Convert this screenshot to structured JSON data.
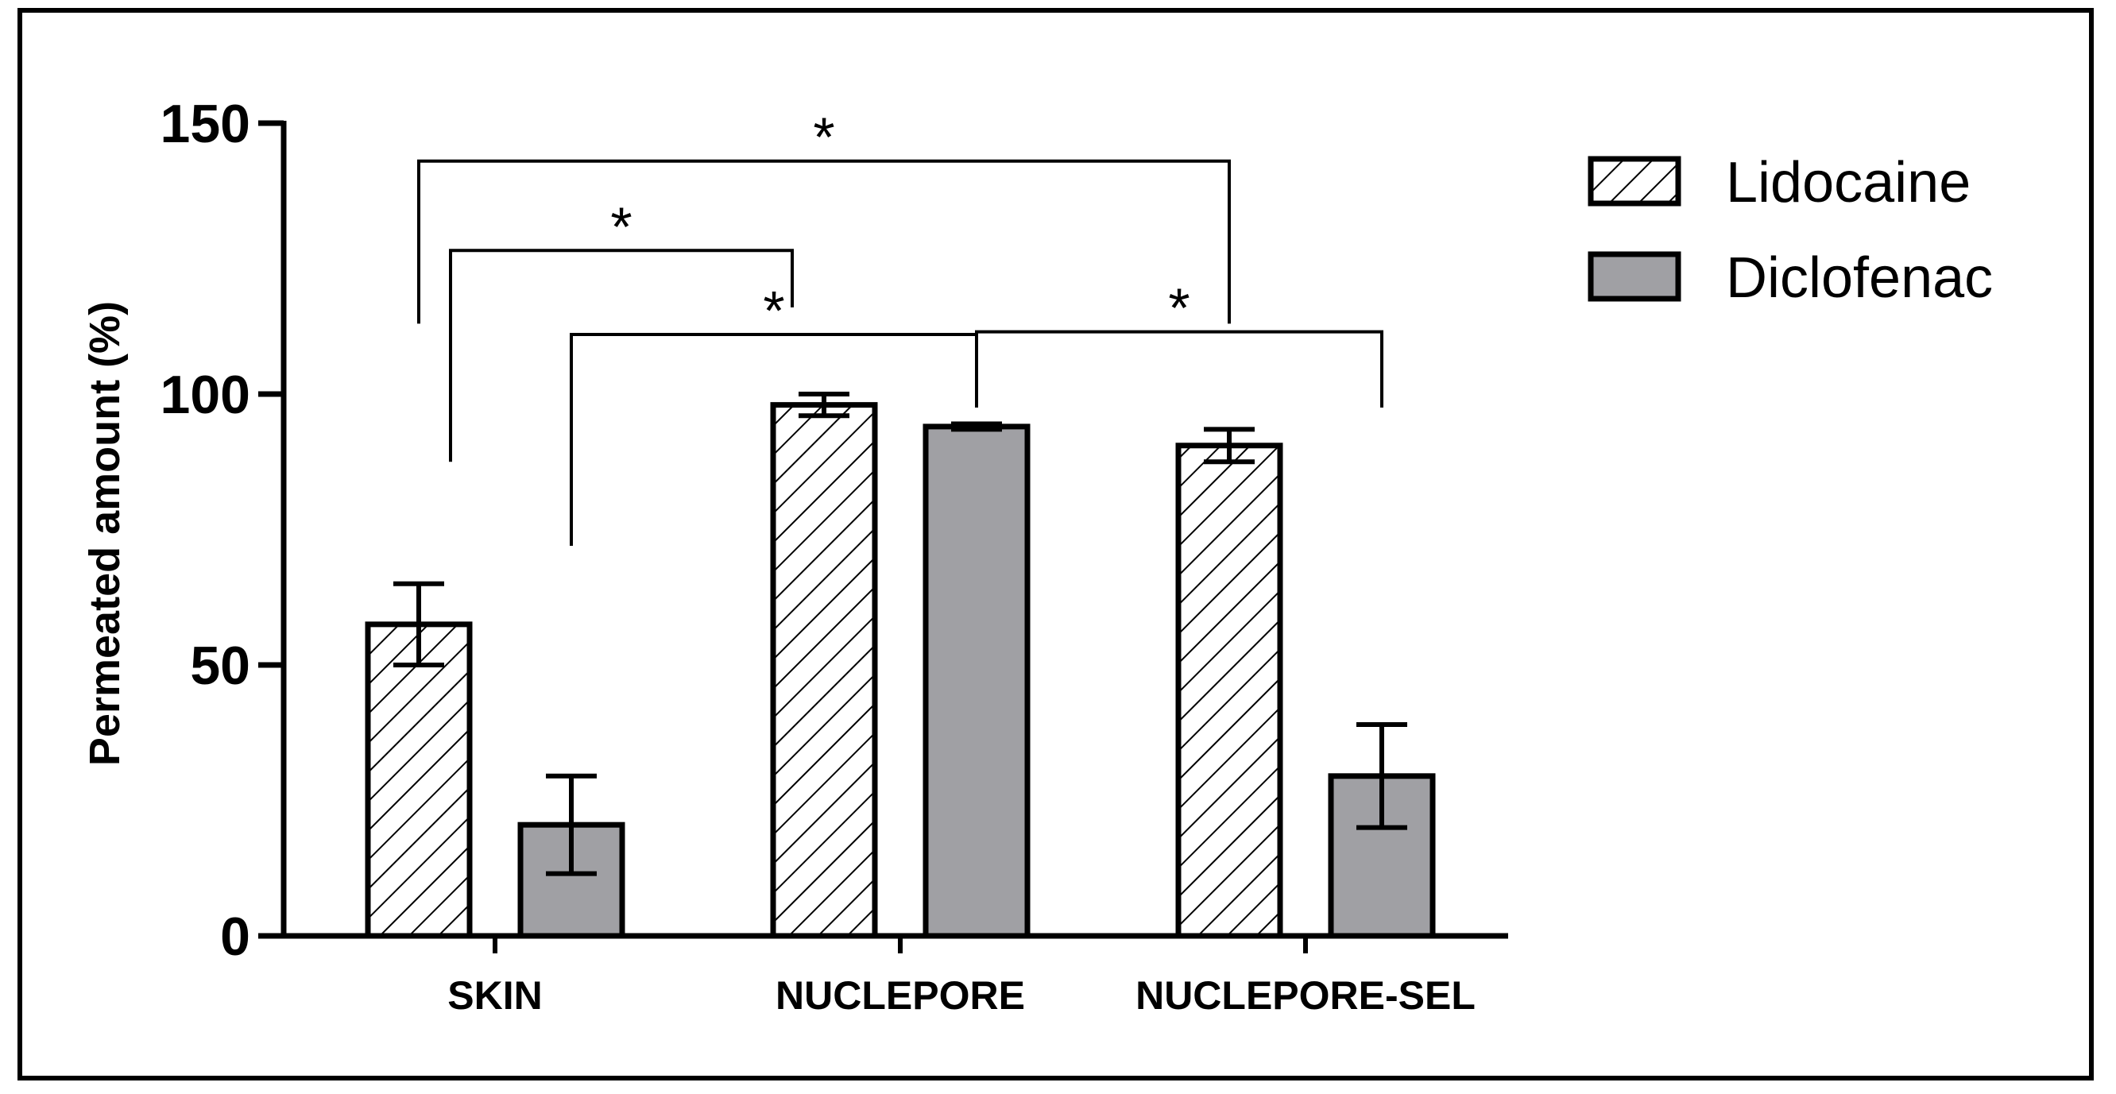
{
  "chart_data": {
    "type": "bar",
    "title": "",
    "xlabel": "",
    "ylabel": "Permeated amount (%)",
    "ylim": [
      0,
      150
    ],
    "yticks": [
      0,
      50,
      100,
      150
    ],
    "categories": [
      "SKIN",
      "NUCLEPORE",
      "NUCLEPORE-SEL"
    ],
    "series": [
      {
        "name": "Lidocaine",
        "pattern": "hatched",
        "fill": "#ffffff",
        "values": [
          57.5,
          98,
          90.5
        ],
        "errors": [
          7.5,
          2,
          3
        ]
      },
      {
        "name": "Diclofenac",
        "pattern": "solid",
        "fill": "#a0a0a4",
        "values": [
          20.5,
          94,
          29.5
        ],
        "errors": [
          9,
          0.5,
          9.5
        ]
      }
    ],
    "legend": {
      "position": "top-right"
    },
    "significance": [
      {
        "label": "*",
        "from": {
          "category": 0,
          "series": 0
        },
        "to": {
          "category": 2,
          "series": 0
        },
        "y": 143,
        "left_end": 113,
        "right_end": 113
      },
      {
        "label": "*",
        "from": {
          "category": 0,
          "series": 0
        },
        "to": {
          "category": 1,
          "series": 0
        },
        "y": 126.5,
        "left_end": 87.5,
        "right_end": 116
      },
      {
        "label": "*",
        "from": {
          "category": 0,
          "series": 1
        },
        "to": {
          "category": 1,
          "series": 1
        },
        "y": 111,
        "left_end": 72,
        "right_end": 100
      },
      {
        "label": "*",
        "from": {
          "category": 1,
          "series": 1
        },
        "to": {
          "category": 2,
          "series": 1
        },
        "y": 111.5,
        "left_end": 97.5,
        "right_end": 97.5
      }
    ],
    "grid": false
  }
}
